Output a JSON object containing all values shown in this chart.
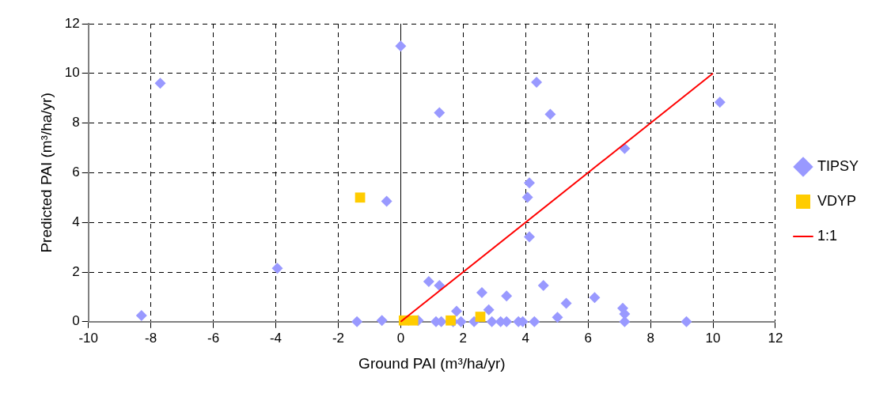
{
  "chart_data": {
    "type": "scatter",
    "xlabel": "Ground PAI (m³/ha/yr)",
    "ylabel": "Predicted PAI (m³/ha/yr)",
    "xlim": [
      -10,
      12
    ],
    "xticks": [
      -10,
      -8,
      -6,
      -4,
      -2,
      0,
      2,
      4,
      6,
      8,
      10,
      12
    ],
    "ylim": [
      0,
      12
    ],
    "yticks": [
      0,
      2,
      4,
      6,
      8,
      10,
      12
    ],
    "grid": true,
    "legend": "right",
    "series": [
      {
        "name": "TIPSY",
        "color": "#9999ff",
        "marker": "diamond",
        "x": [
          -8.3,
          -7.7,
          -3.95,
          -1.4,
          -0.6,
          -0.45,
          0.0,
          0.1,
          0.3,
          0.56,
          0.9,
          1.24,
          1.24,
          1.13,
          1.3,
          1.68,
          1.79,
          1.93,
          2.35,
          2.6,
          2.82,
          2.92,
          3.2,
          3.39,
          3.39,
          3.77,
          3.91,
          4.06,
          4.12,
          4.12,
          4.28,
          4.35,
          4.57,
          4.79,
          5.02,
          5.3,
          6.21,
          7.11,
          7.17,
          7.17,
          7.17,
          9.15,
          10.22
        ],
        "values": [
          0.25,
          9.6,
          2.15,
          0,
          0.05,
          4.85,
          11.1,
          null,
          null,
          0.05,
          1.62,
          1.46,
          8.42,
          0,
          0,
          0,
          0.42,
          0,
          0,
          1.17,
          0.48,
          0,
          0,
          1.04,
          0,
          0,
          0,
          5.01,
          5.59,
          3.42,
          0,
          9.64,
          1.46,
          8.35,
          0.18,
          0.74,
          0.97,
          0.54,
          0.31,
          0,
          6.98,
          0,
          8.84
        ]
      },
      {
        "name": "VDYP",
        "color": "#ffcc00",
        "marker": "square",
        "x": [
          -1.3,
          0.1,
          0.4,
          1.6,
          2.55
        ],
        "values": [
          5.0,
          0.05,
          0.05,
          0.05,
          0.2
        ]
      },
      {
        "name": "1:1",
        "type": "line",
        "color": "#ff0000",
        "marker": "none",
        "line_style": "solid",
        "x": [
          0,
          10
        ],
        "values": [
          0,
          10
        ]
      }
    ]
  }
}
